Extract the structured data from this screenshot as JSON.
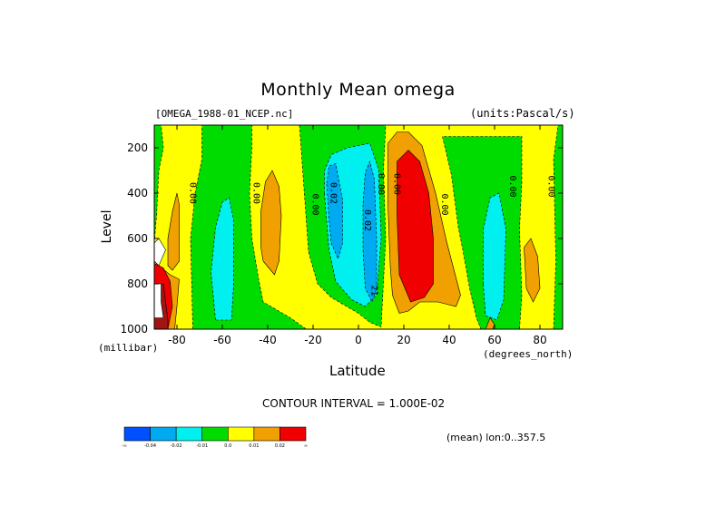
{
  "chart_data": {
    "type": "contour",
    "title": "Monthly Mean omega",
    "file_label": "[OMEGA_1988-01_NCEP.nc]",
    "units_label": "(units:Pascal/s)",
    "xlabel": "Latitude",
    "x_unit_label": "(degrees_north)",
    "ylabel": "Level",
    "y_unit_label": "(millibar)",
    "xlim": [
      -90,
      90
    ],
    "ylim": [
      1000,
      100
    ],
    "y_reversed": true,
    "x_ticks": [
      -80,
      -60,
      -40,
      -20,
      0,
      20,
      40,
      60,
      80
    ],
    "x_tick_labels": [
      "-80",
      "-60",
      "-40",
      "-20",
      "0",
      "20",
      "40",
      "60",
      "80"
    ],
    "y_ticks": [
      200,
      400,
      600,
      800,
      1000
    ],
    "y_tick_labels": [
      "200",
      "400",
      "600",
      "800",
      "1000"
    ],
    "contour_interval_text": "CONTOUR INTERVAL = 1.000E-02",
    "mean_text": "(mean) lon:0..357.5",
    "contour_levels": [
      -0.04,
      -0.02,
      -0.01,
      0.0,
      0.01,
      0.02
    ],
    "contour_labels": [
      {
        "text": "0.00",
        "x": -73,
        "y": 400
      },
      {
        "text": "0.00",
        "x": -45,
        "y": 400
      },
      {
        "text": "0.00",
        "x": -19,
        "y": 450
      },
      {
        "text": "0.02",
        "x": -11,
        "y": 400
      },
      {
        "text": "0.02",
        "x": 4,
        "y": 520
      },
      {
        "text": "0.00",
        "x": 10,
        "y": 360
      },
      {
        "text": "0.00",
        "x": 17,
        "y": 360
      },
      {
        "text": "0.00",
        "x": 38,
        "y": 450
      },
      {
        "text": "0.00",
        "x": 68,
        "y": 370
      },
      {
        "text": "0.00",
        "x": 85,
        "y": 370
      },
      {
        "text": "21",
        "x": 7,
        "y": 830
      }
    ],
    "regions": [
      {
        "level": "-0.01",
        "color": "#00dc00",
        "points": [
          [
            -90,
            1000
          ],
          [
            -90,
            100
          ],
          [
            -87,
            100
          ],
          [
            -86,
            200
          ],
          [
            -88,
            300
          ],
          [
            -89,
            500
          ],
          [
            -90,
            620
          ]
        ]
      },
      {
        "level": "-0.01",
        "color": "#00dc00",
        "points": [
          [
            -73,
            1000
          ],
          [
            -74,
            600
          ],
          [
            -72,
            400
          ],
          [
            -69,
            250
          ],
          [
            -69,
            100
          ],
          [
            -47,
            100
          ],
          [
            -47,
            200
          ],
          [
            -48,
            400
          ],
          [
            -47,
            600
          ],
          [
            -44,
            780
          ],
          [
            -42,
            880
          ],
          [
            -30,
            950
          ],
          [
            -23,
            1000
          ]
        ]
      },
      {
        "level": "-0.02",
        "color": "#00f0f0",
        "points": [
          [
            -63,
            960
          ],
          [
            -65,
            750
          ],
          [
            -63,
            550
          ],
          [
            -60,
            440
          ],
          [
            -57,
            420
          ],
          [
            -55,
            520
          ],
          [
            -55,
            800
          ],
          [
            -56,
            960
          ]
        ]
      },
      {
        "level": "-0.01",
        "color": "#00dc00",
        "points": [
          [
            -26,
            100
          ],
          [
            -24,
            380
          ],
          [
            -22,
            660
          ],
          [
            -18,
            800
          ],
          [
            -12,
            860
          ],
          [
            0,
            930
          ],
          [
            5,
            970
          ],
          [
            10,
            990
          ],
          [
            12,
            600
          ],
          [
            11,
            300
          ],
          [
            12,
            100
          ]
        ]
      },
      {
        "level": "-0.02",
        "color": "#00f0f0",
        "points": [
          [
            -15,
            400
          ],
          [
            -13,
            650
          ],
          [
            -10,
            790
          ],
          [
            -3,
            870
          ],
          [
            3,
            900
          ],
          [
            8,
            850
          ],
          [
            10,
            600
          ],
          [
            9,
            300
          ],
          [
            5,
            180
          ],
          [
            -5,
            200
          ],
          [
            -12,
            230
          ],
          [
            -15,
            300
          ]
        ]
      },
      {
        "level": "-0.04",
        "color": "#00aaf0",
        "points": [
          [
            -14,
            360
          ],
          [
            -13,
            510
          ],
          [
            -12,
            620
          ],
          [
            -9,
            690
          ],
          [
            -7,
            620
          ],
          [
            -7,
            430
          ],
          [
            -10,
            270
          ],
          [
            -13,
            280
          ]
        ]
      },
      {
        "level": "-0.04",
        "color": "#00aaf0",
        "points": [
          [
            2,
            450
          ],
          [
            2,
            650
          ],
          [
            3,
            820
          ],
          [
            6,
            880
          ],
          [
            8,
            820
          ],
          [
            8,
            600
          ],
          [
            7,
            340
          ],
          [
            5,
            260
          ],
          [
            3,
            310
          ]
        ]
      },
      {
        "level": "-0.01",
        "color": "#00dc00",
        "points": [
          [
            37,
            150
          ],
          [
            41,
            320
          ],
          [
            44,
            550
          ],
          [
            46,
            650
          ],
          [
            49,
            820
          ],
          [
            52,
            950
          ],
          [
            54,
            1000
          ],
          [
            71,
            1000
          ],
          [
            72,
            850
          ],
          [
            71,
            560
          ],
          [
            72,
            350
          ],
          [
            72,
            150
          ]
        ]
      },
      {
        "level": "-0.02",
        "color": "#00f0f0",
        "points": [
          [
            55,
            800
          ],
          [
            56,
            940
          ],
          [
            61,
            960
          ],
          [
            64,
            870
          ],
          [
            65,
            560
          ],
          [
            62,
            400
          ],
          [
            58,
            420
          ],
          [
            55,
            560
          ]
        ]
      },
      {
        "level": "-0.01",
        "color": "#00dc00",
        "points": [
          [
            86,
            1000
          ],
          [
            87,
            700
          ],
          [
            86,
            250
          ],
          [
            88,
            100
          ],
          [
            90,
            100
          ],
          [
            90,
            1000
          ]
        ]
      },
      {
        "level": "0.01",
        "color": "#f0a000",
        "points": [
          [
            -80,
            400
          ],
          [
            -82,
            480
          ],
          [
            -84,
            600
          ],
          [
            -84,
            720
          ],
          [
            -82,
            740
          ],
          [
            -79,
            700
          ],
          [
            -79,
            560
          ],
          [
            -79,
            450
          ]
        ]
      },
      {
        "level": "0.01",
        "color": "#f0a000",
        "points": [
          [
            -42,
            700
          ],
          [
            -43,
            640
          ],
          [
            -43,
            480
          ],
          [
            -41,
            350
          ],
          [
            -38,
            300
          ],
          [
            -35,
            370
          ],
          [
            -34,
            500
          ],
          [
            -35,
            700
          ],
          [
            -37,
            760
          ]
        ]
      },
      {
        "level": "0.01",
        "color": "#f0a000",
        "points": [
          [
            13,
            180
          ],
          [
            13,
            450
          ],
          [
            14,
            720
          ],
          [
            15,
            850
          ],
          [
            18,
            930
          ],
          [
            22,
            920
          ],
          [
            27,
            880
          ],
          [
            35,
            880
          ],
          [
            43,
            900
          ],
          [
            45,
            850
          ],
          [
            39,
            620
          ],
          [
            34,
            400
          ],
          [
            28,
            190
          ],
          [
            22,
            130
          ],
          [
            17,
            130
          ]
        ]
      },
      {
        "level": "0.02",
        "color": "#f00000",
        "points": [
          [
            17,
            260
          ],
          [
            17,
            500
          ],
          [
            18,
            760
          ],
          [
            23,
            880
          ],
          [
            29,
            860
          ],
          [
            33,
            800
          ],
          [
            33,
            600
          ],
          [
            31,
            400
          ],
          [
            27,
            260
          ],
          [
            22,
            210
          ]
        ]
      },
      {
        "level": "0.01",
        "color": "#f0a000",
        "points": [
          [
            73,
            640
          ],
          [
            74,
            820
          ],
          [
            77,
            880
          ],
          [
            80,
            820
          ],
          [
            79,
            680
          ],
          [
            76,
            600
          ]
        ]
      },
      {
        "level": "0.01",
        "color": "#f0a000",
        "points": [
          [
            56,
            1000
          ],
          [
            58,
            950
          ],
          [
            60,
            980
          ],
          [
            59,
            1000
          ]
        ]
      },
      {
        "level": "0.0",
        "color": "#ffffff",
        "points": [
          [
            -90,
            620
          ],
          [
            -88,
            600
          ],
          [
            -85,
            650
          ],
          [
            -88,
            720
          ],
          [
            -90,
            700
          ]
        ]
      },
      {
        "level": "0.01",
        "color": "#f0a000",
        "points": [
          [
            -90,
            700
          ],
          [
            -88,
            720
          ],
          [
            -83,
            760
          ],
          [
            -79,
            780
          ],
          [
            -80,
            900
          ],
          [
            -81,
            1000
          ],
          [
            -90,
            1000
          ]
        ]
      },
      {
        "level": "0.02",
        "color": "#f00000",
        "points": [
          [
            -90,
            710
          ],
          [
            -86,
            730
          ],
          [
            -83,
            790
          ],
          [
            -82,
            900
          ],
          [
            -84,
            1000
          ],
          [
            -90,
            1000
          ]
        ]
      },
      {
        "level": "0.04",
        "color": "#a01414",
        "points": [
          [
            -90,
            800
          ],
          [
            -86,
            800
          ],
          [
            -85,
            880
          ],
          [
            -84,
            960
          ],
          [
            -84,
            1000
          ],
          [
            -90,
            1000
          ]
        ]
      },
      {
        "level": "white",
        "color": "#ffffff",
        "points": [
          [
            -90,
            800
          ],
          [
            -87,
            800
          ],
          [
            -87,
            880
          ],
          [
            -86,
            950
          ],
          [
            -90,
            950
          ]
        ]
      }
    ]
  },
  "colorbar": {
    "colors": [
      "#0050ff",
      "#00aaf0",
      "#00f0f0",
      "#00dc00",
      "#ffff00",
      "#f0a000",
      "#f00000"
    ],
    "labels": [
      "-∞",
      "-0.04",
      "-0.02",
      "-0.01",
      "0.0",
      "0.01",
      "0.02",
      "∞"
    ]
  }
}
